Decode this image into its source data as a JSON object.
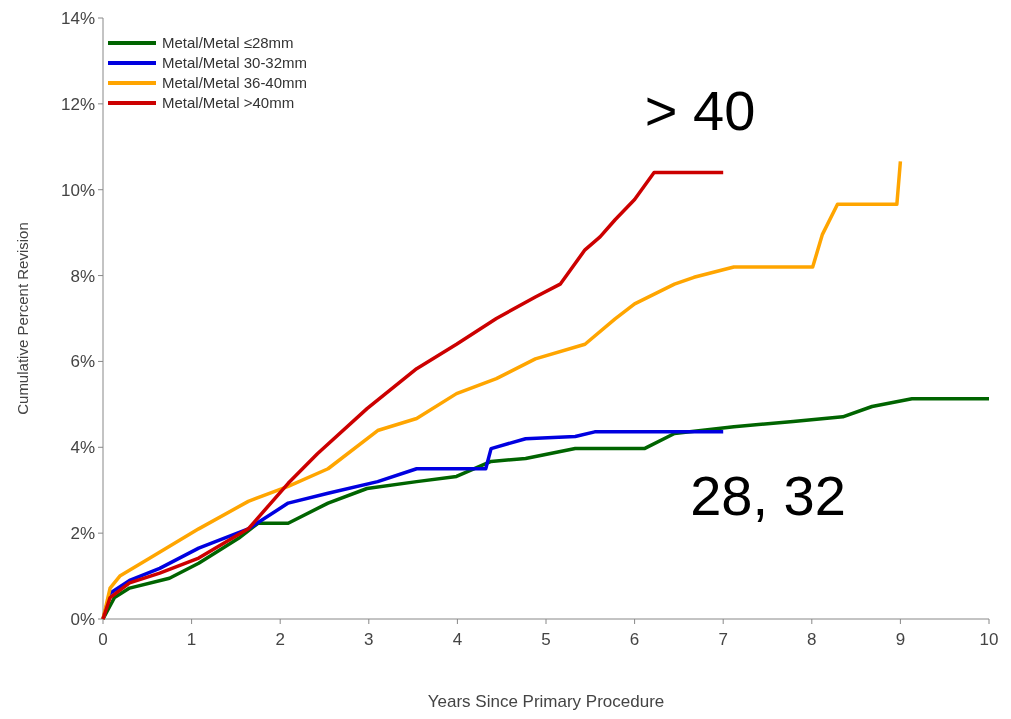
{
  "chart_data": {
    "type": "line",
    "xlabel": "Years Since Primary Procedure",
    "ylabel": "Cumulative Percent Revision",
    "xlim": [
      0,
      10
    ],
    "xticks": [
      0,
      1,
      2,
      3,
      4,
      5,
      6,
      7,
      8,
      9,
      10
    ],
    "ylim": [
      0,
      14
    ],
    "yticks": [
      {
        "value": 0,
        "label": "0%"
      },
      {
        "value": 2,
        "label": "2%"
      },
      {
        "value": 4,
        "label": "4%"
      },
      {
        "value": 6,
        "label": "6%"
      },
      {
        "value": 8,
        "label": "8%"
      },
      {
        "value": 10,
        "label": "10%"
      },
      {
        "value": 12,
        "label": "12%"
      },
      {
        "value": 14,
        "label": "14%"
      }
    ],
    "grid": false,
    "legend": "top left",
    "marker": "none",
    "line_style": "solid",
    "series": [
      {
        "name": "Metal/Metal ≤28mm",
        "color": "#006400",
        "x": [
          0,
          0.13,
          0.3,
          0.75,
          1.08,
          1.53,
          1.75,
          2.09,
          2.54,
          2.98,
          3.54,
          3.99,
          4.38,
          4.77,
          5.33,
          6.11,
          6.45,
          7.12,
          7.79,
          8.35,
          8.68,
          9.13,
          10
        ],
        "values": [
          0,
          0.5,
          0.72,
          0.95,
          1.3,
          1.88,
          2.23,
          2.23,
          2.7,
          3.04,
          3.2,
          3.32,
          3.67,
          3.74,
          3.97,
          3.97,
          4.32,
          4.48,
          4.6,
          4.71,
          4.95,
          5.13,
          5.13
        ]
      },
      {
        "name": "Metal/Metal 30-32mm",
        "color": "#0000e0",
        "x": [
          0,
          0.08,
          0.3,
          0.64,
          1.08,
          1.64,
          2.09,
          2.54,
          3.1,
          3.54,
          4.32,
          4.38,
          4.77,
          5.33,
          5.55,
          7.0
        ],
        "values": [
          0,
          0.6,
          0.9,
          1.18,
          1.65,
          2.1,
          2.7,
          2.93,
          3.2,
          3.5,
          3.5,
          3.97,
          4.2,
          4.25,
          4.36,
          4.36
        ]
      },
      {
        "name": "Metal/Metal 36-40mm",
        "color": "#ffa500",
        "x": [
          0,
          0.08,
          0.19,
          0.53,
          1.08,
          1.64,
          2.09,
          2.54,
          3.1,
          3.54,
          3.99,
          4.44,
          4.88,
          5.44,
          5.78,
          6.0,
          6.45,
          6.67,
          7.12,
          8.01,
          8.12,
          8.29,
          8.96,
          9.0
        ],
        "values": [
          0,
          0.72,
          1.0,
          1.42,
          2.1,
          2.74,
          3.09,
          3.5,
          4.39,
          4.67,
          5.25,
          5.6,
          6.06,
          6.4,
          6.99,
          7.34,
          7.8,
          7.96,
          8.2,
          8.2,
          8.96,
          9.66,
          9.66,
          10.66
        ]
      },
      {
        "name": "Metal/Metal >40mm",
        "color": "#cc0000",
        "x": [
          0,
          0.08,
          0.3,
          0.64,
          1.08,
          1.64,
          2.09,
          2.42,
          2.98,
          3.54,
          3.99,
          4.44,
          4.88,
          5.16,
          5.44,
          5.61,
          5.78,
          6.0,
          6.22,
          7.0
        ],
        "values": [
          0,
          0.5,
          0.84,
          1.07,
          1.42,
          2.1,
          3.16,
          3.85,
          4.9,
          5.83,
          6.4,
          7.0,
          7.5,
          7.8,
          8.6,
          8.9,
          9.3,
          9.77,
          10.4,
          10.4
        ]
      }
    ],
    "annotations": [
      "> 40",
      "28, 32"
    ]
  }
}
